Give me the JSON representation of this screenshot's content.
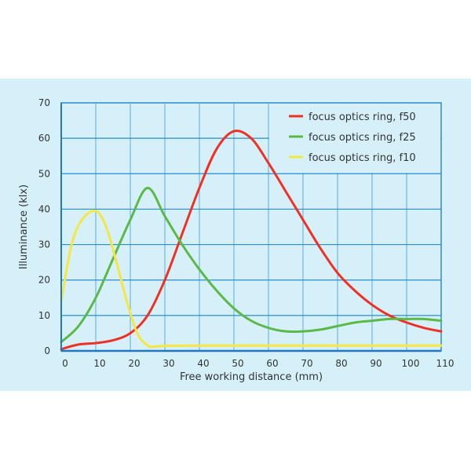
{
  "chart_data": {
    "type": "line",
    "title": "",
    "xlabel": "Free working distance (mm)",
    "ylabel": "Illuminance (klx)",
    "xlim": [
      0,
      110
    ],
    "ylim": [
      0,
      70
    ],
    "xticks": [
      0,
      10,
      20,
      30,
      40,
      50,
      60,
      70,
      80,
      90,
      100,
      110
    ],
    "yticks": [
      0,
      10,
      20,
      30,
      40,
      50,
      60,
      70
    ],
    "grid": true,
    "legend_position": "top-right",
    "series": [
      {
        "name": "focus optics ring, f50",
        "color": "#ee3124",
        "x": [
          0,
          5,
          10,
          15,
          20,
          25,
          30,
          35,
          40,
          45,
          50,
          55,
          60,
          65,
          70,
          75,
          80,
          85,
          90,
          95,
          100,
          105,
          110
        ],
        "y": [
          0.5,
          1.8,
          2.2,
          3,
          5,
          10,
          20,
          33,
          46,
          57,
          62,
          60,
          53,
          45,
          37,
          29,
          22,
          17,
          13,
          10,
          8,
          6.5,
          5.5
        ]
      },
      {
        "name": "focus optics ring, f25",
        "color": "#5ab947",
        "x": [
          0,
          5,
          10,
          15,
          20,
          25,
          30,
          35,
          40,
          45,
          50,
          55,
          60,
          65,
          70,
          75,
          80,
          85,
          90,
          95,
          100,
          105,
          110
        ],
        "y": [
          2.5,
          7,
          15,
          26,
          37,
          46,
          38,
          30,
          23,
          17,
          12,
          8.5,
          6.5,
          5.5,
          5.5,
          6,
          7,
          8,
          8.5,
          9,
          9,
          9,
          8.5
        ]
      },
      {
        "name": "focus optics ring, f10",
        "color": "#f5e642",
        "x": [
          0,
          3,
          6,
          10,
          13,
          16,
          19,
          22,
          25,
          27,
          30,
          40,
          50,
          60,
          70,
          80,
          90,
          100,
          110
        ],
        "y": [
          14,
          30,
          37,
          39.5,
          35,
          25,
          14,
          5,
          1.5,
          1.2,
          1.4,
          1.5,
          1.5,
          1.5,
          1.5,
          1.5,
          1.5,
          1.5,
          1.5
        ]
      }
    ]
  }
}
